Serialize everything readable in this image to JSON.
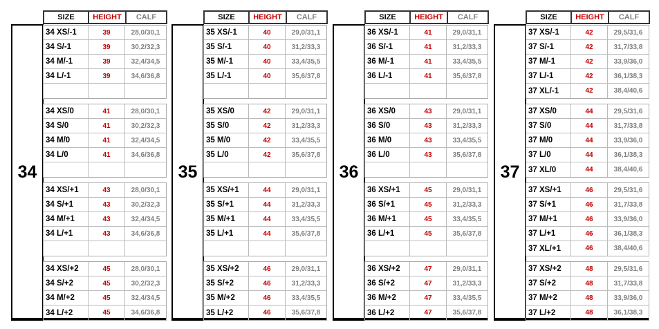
{
  "headers": {
    "size": "SIZE",
    "height": "HEIGHT",
    "calf": "CALF"
  },
  "colors": {
    "height": "#c00000",
    "calf": "#808080",
    "header_height": "#c00000",
    "header_calf": "#808080"
  },
  "panels": [
    {
      "label": "34",
      "groups": [
        {
          "rows": [
            {
              "size": "34 XS/-1",
              "height": "39",
              "calf": "28,0/30,1"
            },
            {
              "size": "34 S/-1",
              "height": "39",
              "calf": "30,2/32,3"
            },
            {
              "size": "34 M/-1",
              "height": "39",
              "calf": "32,4/34,5"
            },
            {
              "size": "34 L/-1",
              "height": "39",
              "calf": "34,6/36,8"
            },
            {
              "size": "",
              "height": "",
              "calf": ""
            }
          ]
        },
        {
          "rows": [
            {
              "size": "34 XS/0",
              "height": "41",
              "calf": "28,0/30,1"
            },
            {
              "size": "34 S/0",
              "height": "41",
              "calf": "30,2/32,3"
            },
            {
              "size": "34 M/0",
              "height": "41",
              "calf": "32,4/34,5"
            },
            {
              "size": "34 L/0",
              "height": "41",
              "calf": "34,6/36,8"
            },
            {
              "size": "",
              "height": "",
              "calf": ""
            }
          ]
        },
        {
          "rows": [
            {
              "size": "34 XS/+1",
              "height": "43",
              "calf": "28,0/30,1"
            },
            {
              "size": "34 S/+1",
              "height": "43",
              "calf": "30,2/32,3"
            },
            {
              "size": "34 M/+1",
              "height": "43",
              "calf": "32,4/34,5"
            },
            {
              "size": "34 L/+1",
              "height": "43",
              "calf": "34,6/36,8"
            },
            {
              "size": "",
              "height": "",
              "calf": ""
            }
          ]
        },
        {
          "rows": [
            {
              "size": "34 XS/+2",
              "height": "45",
              "calf": "28,0/30,1"
            },
            {
              "size": "34 S/+2",
              "height": "45",
              "calf": "30,2/32,3"
            },
            {
              "size": "34 M/+2",
              "height": "45",
              "calf": "32,4/34,5"
            },
            {
              "size": "34 L/+2",
              "height": "45",
              "calf": "34,6/36,8"
            }
          ]
        }
      ]
    },
    {
      "label": "35",
      "groups": [
        {
          "rows": [
            {
              "size": "35 XS/-1",
              "height": "40",
              "calf": "29,0/31,1"
            },
            {
              "size": "35 S/-1",
              "height": "40",
              "calf": "31,2/33,3"
            },
            {
              "size": "35 M/-1",
              "height": "40",
              "calf": "33,4/35,5"
            },
            {
              "size": "35 L/-1",
              "height": "40",
              "calf": "35,6/37,8"
            },
            {
              "size": "",
              "height": "",
              "calf": ""
            }
          ]
        },
        {
          "rows": [
            {
              "size": "35 XS/0",
              "height": "42",
              "calf": "29,0/31,1"
            },
            {
              "size": "35 S/0",
              "height": "42",
              "calf": "31,2/33,3"
            },
            {
              "size": "35 M/0",
              "height": "42",
              "calf": "33,4/35,5"
            },
            {
              "size": "35 L/0",
              "height": "42",
              "calf": "35,6/37,8"
            },
            {
              "size": "",
              "height": "",
              "calf": ""
            }
          ]
        },
        {
          "rows": [
            {
              "size": "35 XS/+1",
              "height": "44",
              "calf": "29,0/31,1"
            },
            {
              "size": "35 S/+1",
              "height": "44",
              "calf": "31,2/33,3"
            },
            {
              "size": "35 M/+1",
              "height": "44",
              "calf": "33,4/35,5"
            },
            {
              "size": "35 L/+1",
              "height": "44",
              "calf": "35,6/37,8"
            },
            {
              "size": "",
              "height": "",
              "calf": ""
            }
          ]
        },
        {
          "rows": [
            {
              "size": "35 XS/+2",
              "height": "46",
              "calf": "29,0/31,1"
            },
            {
              "size": "35 S/+2",
              "height": "46",
              "calf": "31,2/33,3"
            },
            {
              "size": "35 M/+2",
              "height": "46",
              "calf": "33,4/35,5"
            },
            {
              "size": "35 L/+2",
              "height": "46",
              "calf": "35,6/37,8"
            }
          ]
        }
      ]
    },
    {
      "label": "36",
      "groups": [
        {
          "rows": [
            {
              "size": "36 XS/-1",
              "height": "41",
              "calf": "29,0/31,1"
            },
            {
              "size": "36 S/-1",
              "height": "41",
              "calf": "31,2/33,3"
            },
            {
              "size": "36 M/-1",
              "height": "41",
              "calf": "33,4/35,5"
            },
            {
              "size": "36 L/-1",
              "height": "41",
              "calf": "35,6/37,8"
            },
            {
              "size": "",
              "height": "",
              "calf": ""
            }
          ]
        },
        {
          "rows": [
            {
              "size": "36 XS/0",
              "height": "43",
              "calf": "29,0/31,1"
            },
            {
              "size": "36 S/0",
              "height": "43",
              "calf": "31,2/33,3"
            },
            {
              "size": "36 M/0",
              "height": "43",
              "calf": "33,4/35,5"
            },
            {
              "size": "36 L/0",
              "height": "43",
              "calf": "35,6/37,8"
            },
            {
              "size": "",
              "height": "",
              "calf": ""
            }
          ]
        },
        {
          "rows": [
            {
              "size": "36 XS/+1",
              "height": "45",
              "calf": "29,0/31,1"
            },
            {
              "size": "36 S/+1",
              "height": "45",
              "calf": "31,2/33,3"
            },
            {
              "size": "36 M/+1",
              "height": "45",
              "calf": "33,4/35,5"
            },
            {
              "size": "36 L/+1",
              "height": "45",
              "calf": "35,6/37,8"
            },
            {
              "size": "",
              "height": "",
              "calf": ""
            }
          ]
        },
        {
          "rows": [
            {
              "size": "36 XS/+2",
              "height": "47",
              "calf": "29,0/31,1"
            },
            {
              "size": "36 S/+2",
              "height": "47",
              "calf": "31,2/33,3"
            },
            {
              "size": "36 M/+2",
              "height": "47",
              "calf": "33,4/35,5"
            },
            {
              "size": "36 L/+2",
              "height": "47",
              "calf": "35,6/37,8"
            }
          ]
        }
      ]
    },
    {
      "label": "37",
      "groups": [
        {
          "rows": [
            {
              "size": "37 XS/-1",
              "height": "42",
              "calf": "29,5/31,6"
            },
            {
              "size": "37 S/-1",
              "height": "42",
              "calf": "31,7/33,8"
            },
            {
              "size": "37 M/-1",
              "height": "42",
              "calf": "33,9/36,0"
            },
            {
              "size": "37 L/-1",
              "height": "42",
              "calf": "36,1/38,3"
            },
            {
              "size": "37 XL/-1",
              "height": "42",
              "calf": "38,4/40,6"
            }
          ]
        },
        {
          "rows": [
            {
              "size": "37 XS/0",
              "height": "44",
              "calf": "29,5/31,6"
            },
            {
              "size": "37 S/0",
              "height": "44",
              "calf": "31,7/33,8"
            },
            {
              "size": "37 M/0",
              "height": "44",
              "calf": "33,9/36,0"
            },
            {
              "size": "37 L/0",
              "height": "44",
              "calf": "36,1/38,3"
            },
            {
              "size": "37 XL/0",
              "height": "44",
              "calf": "38,4/40,6"
            }
          ]
        },
        {
          "rows": [
            {
              "size": "37 XS/+1",
              "height": "46",
              "calf": "29,5/31,6"
            },
            {
              "size": "37 S/+1",
              "height": "46",
              "calf": "31,7/33,8"
            },
            {
              "size": "37 M/+1",
              "height": "46",
              "calf": "33,9/36,0"
            },
            {
              "size": "37 L/+1",
              "height": "46",
              "calf": "36,1/38,3"
            },
            {
              "size": "37 XL/+1",
              "height": "46",
              "calf": "38,4/40,6"
            }
          ]
        },
        {
          "rows": [
            {
              "size": "37 XS/+2",
              "height": "48",
              "calf": "29,5/31,6"
            },
            {
              "size": "37 S/+2",
              "height": "48",
              "calf": "31,7/33,8"
            },
            {
              "size": "37 M/+2",
              "height": "48",
              "calf": "33,9/36,0"
            },
            {
              "size": "37 L/+2",
              "height": "48",
              "calf": "36,1/38,3"
            }
          ]
        }
      ]
    }
  ]
}
